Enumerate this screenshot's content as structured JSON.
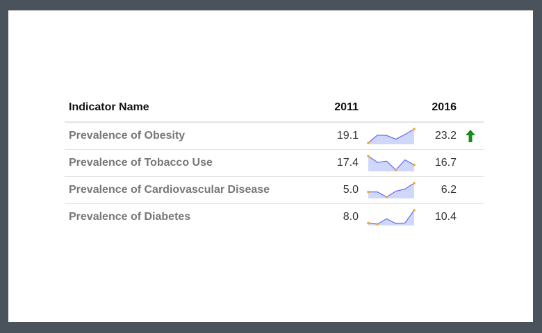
{
  "table": {
    "headers": {
      "name": "Indicator Name",
      "start_year": "2011",
      "end_year": "2016"
    },
    "rows": [
      {
        "name": "Prevalence of Obesity",
        "start": "19.1",
        "end": "23.2",
        "trend": "up-arrow-icon",
        "spark": [
          19.1,
          21.4,
          21.3,
          20.2,
          21.6,
          23.2
        ]
      },
      {
        "name": "Prevalence of Tobacco Use",
        "start": "17.4",
        "end": "16.7",
        "trend": "",
        "spark": [
          17.4,
          16.9,
          17.0,
          16.3,
          17.1,
          16.7
        ]
      },
      {
        "name": "Prevalence of Cardiovascular Disease",
        "start": "5.0",
        "end": "6.2",
        "trend": "",
        "spark": [
          5.0,
          5.0,
          4.3,
          5.1,
          5.4,
          6.2
        ]
      },
      {
        "name": "Prevalence of Diabetes",
        "start": "8.0",
        "end": "10.4",
        "trend": "",
        "spark": [
          8.0,
          7.8,
          8.8,
          7.9,
          8.0,
          10.4
        ]
      }
    ]
  },
  "colors": {
    "spark_line": "#6a6ff0",
    "spark_fill": "#cfd8fb",
    "spark_marker": "#f5a623",
    "trend_up": "#1a8a1a"
  }
}
